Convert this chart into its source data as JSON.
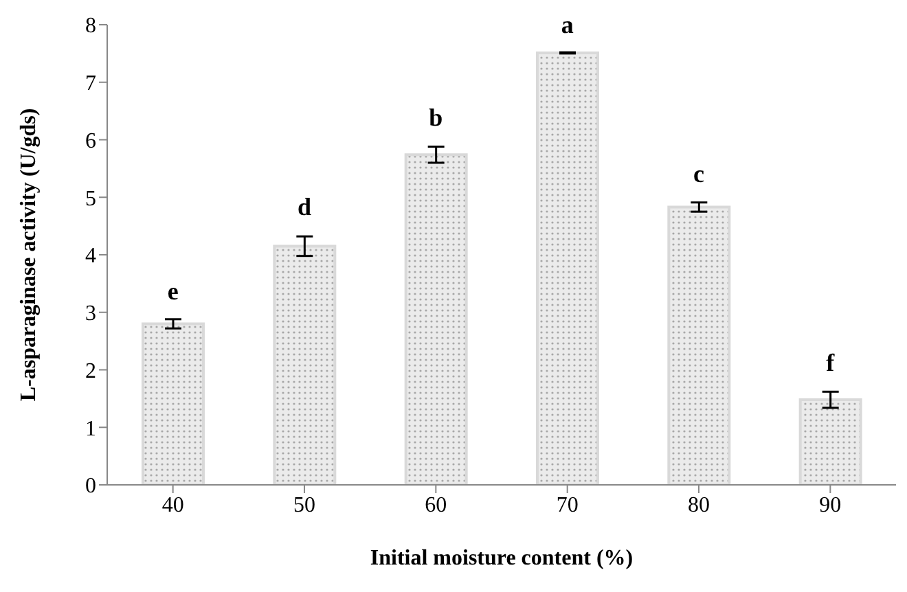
{
  "chart_data": {
    "type": "bar",
    "xlabel": "Initial moisture content (%)",
    "ylabel": "L-asparaginase activity (U/gds)",
    "categories": [
      "40",
      "50",
      "60",
      "70",
      "80",
      "90"
    ],
    "values": [
      2.8,
      4.15,
      5.74,
      7.51,
      4.83,
      1.48
    ],
    "errors": [
      0.08,
      0.17,
      0.14,
      0.01,
      0.08,
      0.14
    ],
    "color": "#d9d9d9",
    "ylim": [
      0,
      8
    ],
    "yticks": [
      0,
      1,
      2,
      3,
      4,
      5,
      6,
      7,
      8
    ],
    "grid": false,
    "legend": false,
    "annotations": [
      {
        "text": "e",
        "x": "40",
        "y": 2.8
      },
      {
        "text": "d",
        "x": "50",
        "y": 4.15
      },
      {
        "text": "b",
        "x": "60",
        "y": 5.74
      },
      {
        "text": "a",
        "x": "70",
        "y": 7.51
      },
      {
        "text": "c",
        "x": "80",
        "y": 4.83
      },
      {
        "text": "f",
        "x": "90",
        "y": 1.48
      }
    ]
  }
}
